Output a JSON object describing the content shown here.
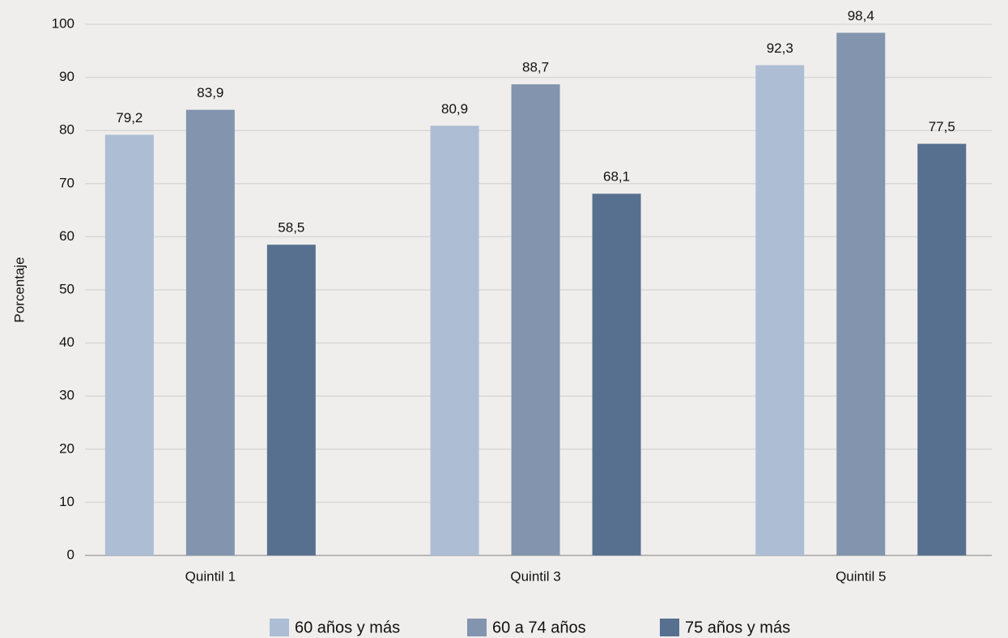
{
  "chart_data": {
    "type": "bar",
    "y_label": "Porcentaje",
    "categories": [
      "Quintil 1",
      "Quintil 3",
      "Quintil 5"
    ],
    "series": [
      {
        "name": "60 años y más",
        "color": "#adbdd4",
        "values": [
          79.2,
          80.9,
          92.3
        ],
        "value_labels": [
          "79,2",
          "80,9",
          "92,3"
        ]
      },
      {
        "name": "60 a 74 años",
        "color": "#8394ae",
        "values": [
          83.9,
          88.7,
          98.4
        ],
        "value_labels": [
          "83,9",
          "88,7",
          "98,4"
        ]
      },
      {
        "name": "75 años y más",
        "color": "#58708f",
        "values": [
          58.5,
          68.1,
          77.5
        ],
        "value_labels": [
          "58,5",
          "68,1",
          "77,5"
        ]
      }
    ],
    "ylim": [
      0,
      100
    ],
    "yticks": [
      0,
      10,
      20,
      30,
      40,
      50,
      60,
      70,
      80,
      90,
      100
    ],
    "grid": true
  }
}
